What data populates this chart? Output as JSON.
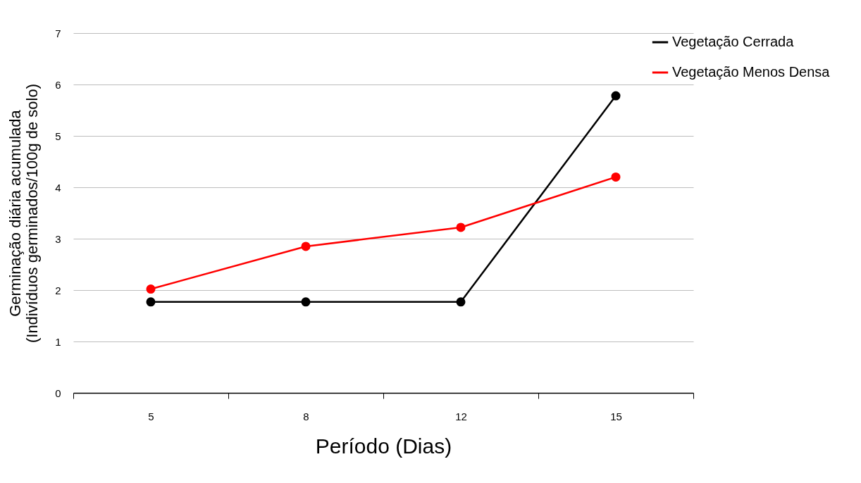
{
  "chart_data": {
    "type": "line",
    "xlabel": "Período (Dias)",
    "ylabel": "Germinação diária acumulada\n(Indivíduos germinados/100g de solo)",
    "categories": [
      "5",
      "8",
      "12",
      "15"
    ],
    "series": [
      {
        "name": "Vegetação Cerrada",
        "color": "#000000",
        "values": [
          1.77,
          1.77,
          1.77,
          5.78
        ]
      },
      {
        "name": "Vegetação Menos Densa",
        "color": "#ff0000",
        "values": [
          2.02,
          2.85,
          3.22,
          4.2
        ]
      }
    ],
    "ylim": [
      0,
      7
    ],
    "yticks": [
      0,
      1,
      2,
      3,
      4,
      5,
      6,
      7
    ],
    "grid": "y",
    "legend": "right",
    "marker": "circle",
    "line_style": "solid"
  }
}
